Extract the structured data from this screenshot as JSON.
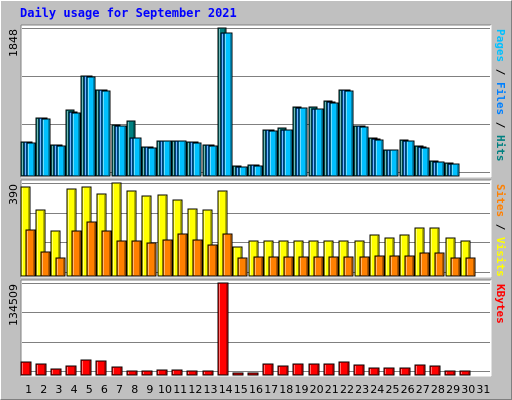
{
  "chart_data": {
    "type": "bar",
    "title": "Daily usage for September 2021",
    "days": [
      "1",
      "2",
      "3",
      "4",
      "5",
      "6",
      "7",
      "8",
      "9",
      "10",
      "11",
      "12",
      "13",
      "14",
      "15",
      "16",
      "17",
      "18",
      "19",
      "20",
      "21",
      "22",
      "23",
      "24",
      "25",
      "26",
      "27",
      "28",
      "29",
      "30",
      "31"
    ],
    "weekend_days": [
      "4",
      "5",
      "11",
      "12",
      "18",
      "19",
      "25",
      "26"
    ],
    "panels": [
      {
        "id": "hits-files-pages",
        "ymax_label": "1848",
        "ymax": 1848,
        "right_label": [
          {
            "text": "Pages",
            "color": "#00c0ff"
          },
          {
            "text": " / ",
            "color": "#000000"
          },
          {
            "text": "Files",
            "color": "#0080ff"
          },
          {
            "text": " / ",
            "color": "#000000"
          },
          {
            "text": "Hits",
            "color": "#008080"
          }
        ],
        "series": [
          {
            "name": "Hits",
            "color": "#008080",
            "values": [
              425,
              720,
              390,
              830,
              1250,
              1070,
              640,
              690,
              365,
              440,
              440,
              420,
              390,
              1848,
              120,
              140,
              580,
              600,
              860,
              860,
              940,
              1080,
              630,
              470,
              330,
              450,
              370,
              185,
              160,
              0,
              0
            ]
          },
          {
            "name": "Files",
            "color": "#0080ff",
            "values": [
              420,
              720,
              385,
              800,
              1250,
              1070,
              630,
              480,
              360,
              440,
              440,
              420,
              385,
              1790,
              115,
              135,
              570,
              580,
              850,
              840,
              920,
              1070,
              620,
              460,
              330,
              440,
              360,
              180,
              155,
              0,
              0
            ]
          },
          {
            "name": "Pages",
            "color": "#00c0ff",
            "values": [
              415,
              710,
              380,
              790,
              1240,
              1060,
              625,
              470,
              355,
              435,
              435,
              415,
              380,
              1780,
              110,
              130,
              565,
              575,
              845,
              835,
              915,
              1060,
              615,
              455,
              325,
              435,
              355,
              175,
              150,
              0,
              0
            ]
          }
        ]
      },
      {
        "id": "visits-sites",
        "ymax_label": "390",
        "ymax": 390,
        "right_label": [
          {
            "text": "Sites",
            "color": "#ff8000"
          },
          {
            "text": " / ",
            "color": "#000000"
          },
          {
            "text": "Visits",
            "color": "#ffff00"
          }
        ],
        "series": [
          {
            "name": "Visits",
            "color": "#ffff00",
            "values": [
              375,
              275,
              190,
              365,
              375,
              345,
              390,
              355,
              335,
              340,
              320,
              280,
              275,
              355,
              120,
              145,
              145,
              145,
              145,
              145,
              145,
              145,
              145,
              170,
              160,
              170,
              200,
              200,
              160,
              145,
              0
            ]
          },
          {
            "name": "Sites",
            "color": "#ff8000",
            "values": [
              195,
              100,
              75,
              190,
              225,
              190,
              145,
              145,
              140,
              150,
              175,
              150,
              130,
              175,
              75,
              80,
              80,
              80,
              80,
              80,
              80,
              80,
              80,
              85,
              85,
              85,
              95,
              95,
              75,
              75,
              0
            ]
          }
        ]
      },
      {
        "id": "kbytes",
        "ymax_label": "134509",
        "ymax": 134509,
        "right_label": [
          {
            "text": "KBytes",
            "color": "#ff0000"
          }
        ],
        "series": [
          {
            "name": "KBytes",
            "color": "#ff0000",
            "values": [
              19000,
              16500,
              9000,
              13500,
              22500,
              20000,
              11000,
              6500,
              5500,
              7500,
              7000,
              6500,
              5500,
              134509,
              3200,
              3600,
              15500,
              12500,
              16500,
              16500,
              16500,
              19500,
              14500,
              10500,
              10500,
              10000,
              14000,
              12500,
              6500,
              6500,
              0
            ]
          }
        ]
      }
    ],
    "colors": {
      "background": "#c0c0c0",
      "plot_background": "#ffffff",
      "gridline": "#808080",
      "weekday_label": "#000000",
      "weekend_label": "#008040",
      "title": "#0000ff"
    },
    "grid": true
  }
}
